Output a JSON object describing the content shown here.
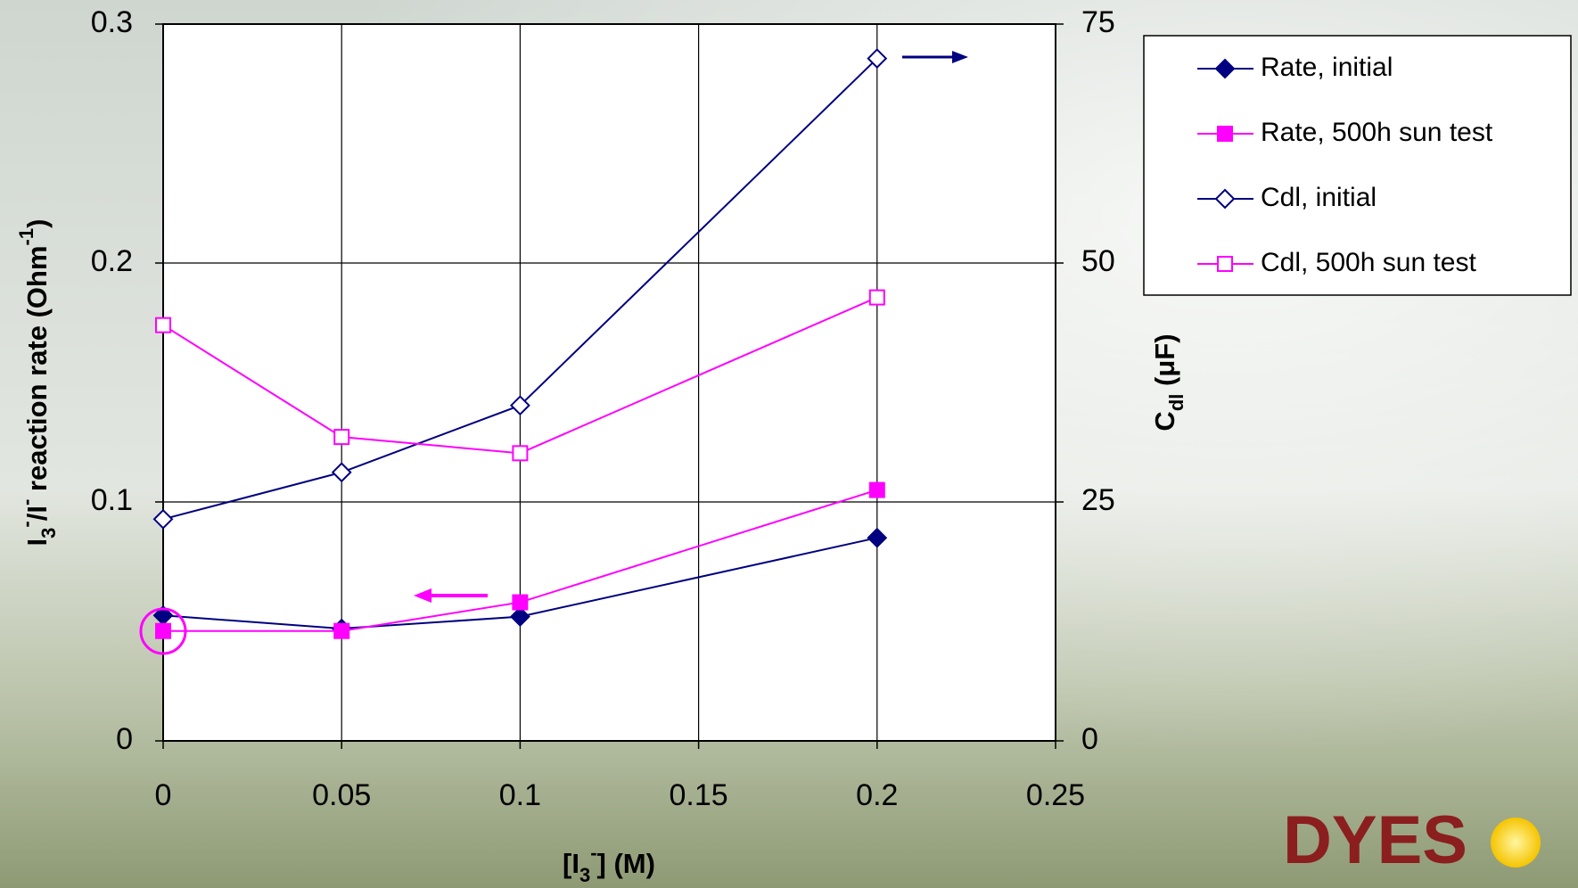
{
  "chart_data": {
    "type": "line",
    "x_label": [
      "[I",
      "3",
      "-",
      "] (M)"
    ],
    "y_label": [
      "I",
      "3",
      "-",
      "/I",
      "-",
      " reaction rate (Ohm",
      "-1",
      ")"
    ],
    "y2_label": [
      "C",
      "dl",
      " (μF)"
    ],
    "x": [
      0,
      0.05,
      0.1,
      0.2
    ],
    "series": [
      {
        "name": "Rate, initial",
        "color": "#000080",
        "marker": "diamond",
        "filled": true,
        "values": [
          0.0525,
          0.047,
          0.052,
          0.085
        ]
      },
      {
        "name": "Rate, 500h sun test",
        "color": "#ff00ff",
        "marker": "square",
        "filled": true,
        "values": [
          0.046,
          0.046,
          0.058,
          0.105
        ]
      },
      {
        "name": "Cdl, initial",
        "color": "#000080",
        "marker": "diamond",
        "filled": false,
        "axis": "y2",
        "values": [
          23.2,
          28.1,
          35.1,
          71.4
        ]
      },
      {
        "name": "Cdl, 500h sun test",
        "color": "#ff00ff",
        "marker": "square",
        "filled": false,
        "axis": "y2",
        "values": [
          43.5,
          31.8,
          30.1,
          46.4
        ]
      }
    ],
    "xlim": [
      0,
      0.25
    ],
    "xticks": [
      0,
      0.05,
      0.1,
      0.15,
      0.2,
      0.25
    ],
    "ylim": [
      0,
      0.3
    ],
    "yticks": [
      0,
      0.1,
      0.2,
      0.3
    ],
    "y2lim": [
      0,
      75
    ],
    "y2ticks": [
      0,
      25,
      50,
      75
    ],
    "grid": true,
    "legend": "right"
  },
  "logo": "DYES"
}
